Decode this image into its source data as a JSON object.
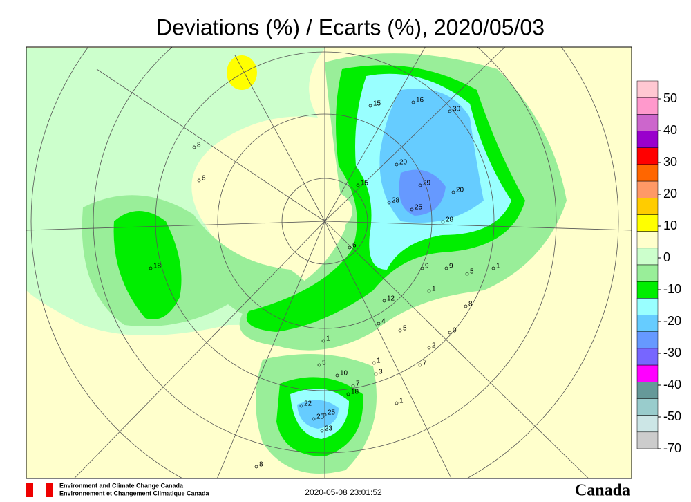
{
  "title": "Deviations (%) / Ecarts (%), 2020/05/03",
  "legend": {
    "labels": [
      50,
      40,
      30,
      20,
      10,
      0,
      -10,
      -20,
      -30,
      -40,
      -50,
      -70
    ],
    "colors": [
      "#ffc8d2",
      "#ff99cc",
      "#cc66cc",
      "#9900cc",
      "#ff0000",
      "#ff6600",
      "#ff9966",
      "#ffcc00",
      "#ffff00",
      "#ffffcc",
      "#ccffcc",
      "#99ee99",
      "#00ee00",
      "#99ffff",
      "#66ccff",
      "#6699ff",
      "#7766ff",
      "#ff00ff",
      "#669999",
      "#99cccc",
      "#cce6e6",
      "#cccccc"
    ]
  },
  "stations": [
    15,
    16,
    30,
    20,
    29,
    20,
    15,
    28,
    25,
    28,
    8,
    8,
    18,
    6,
    9,
    9,
    5,
    1,
    12,
    1,
    8,
    4,
    5,
    0,
    2,
    1,
    5,
    10,
    1,
    3,
    7,
    7,
    18,
    22,
    25,
    25,
    23,
    1,
    8
  ],
  "footer": {
    "agency_en": "Environment and Climate Change Canada",
    "agency_fr": "Environnement et Changement Climatique Canada",
    "timestamp": "2020-05-08 23:01:52",
    "wordmark": "Canada"
  }
}
